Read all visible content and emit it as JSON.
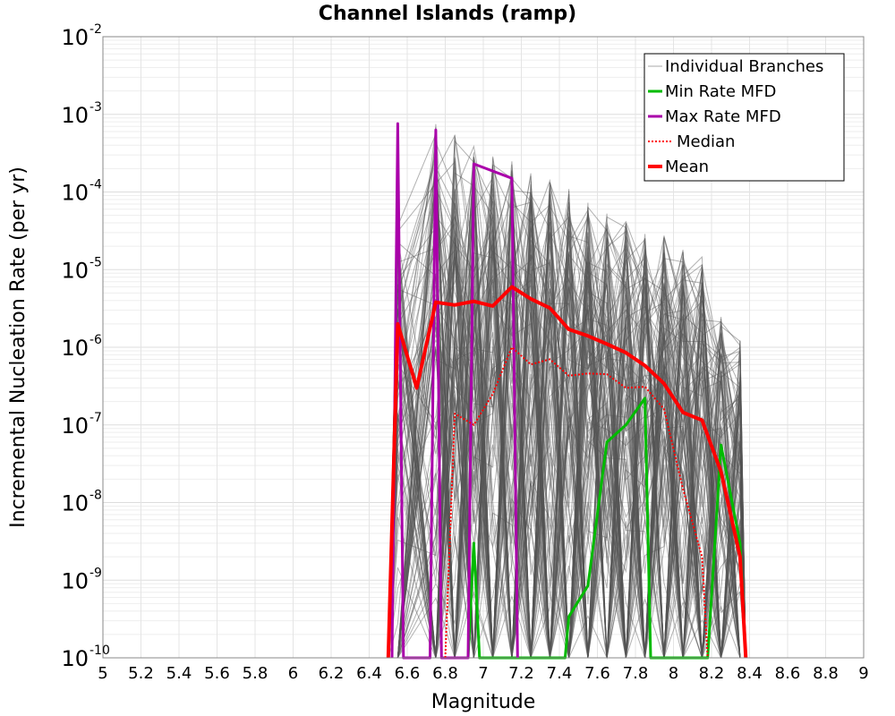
{
  "chart_data": {
    "type": "line",
    "title": "Channel Islands (ramp)",
    "xlabel": "Magnitude",
    "ylabel": "Incremental Nucleation Rate (per yr)",
    "xlim": [
      5,
      9
    ],
    "ylim": [
      1e-10,
      0.01
    ],
    "yscale": "log",
    "x_ticks": [
      "5",
      "5.2",
      "5.4",
      "5.6",
      "5.8",
      "6",
      "6.2",
      "6.4",
      "6.6",
      "6.8",
      "7",
      "7.2",
      "7.4",
      "7.6",
      "7.8",
      "8",
      "8.2",
      "8.4",
      "8.6",
      "8.8",
      "9"
    ],
    "y_ticks": [
      {
        "base": "10",
        "exp": "-10",
        "value": 1e-10
      },
      {
        "base": "10",
        "exp": "-9",
        "value": 1e-09
      },
      {
        "base": "10",
        "exp": "-8",
        "value": 1e-08
      },
      {
        "base": "10",
        "exp": "-7",
        "value": 1e-07
      },
      {
        "base": "10",
        "exp": "-6",
        "value": 1e-06
      },
      {
        "base": "10",
        "exp": "-5",
        "value": 1e-05
      },
      {
        "base": "10",
        "exp": "-4",
        "value": 0.0001
      },
      {
        "base": "10",
        "exp": "-3",
        "value": 0.001
      },
      {
        "base": "10",
        "exp": "-2",
        "value": 0.01
      }
    ],
    "legend": {
      "position": "top-right",
      "entries": [
        {
          "label": "Individual Branches",
          "color": "#aaaaaa",
          "style": "thin"
        },
        {
          "label": "Min Rate MFD",
          "color": "#00bb00",
          "style": "solid"
        },
        {
          "label": "Max Rate MFD",
          "color": "#aa00aa",
          "style": "solid"
        },
        {
          "label": "Median",
          "color": "#ff0000",
          "style": "dotted"
        },
        {
          "label": "Mean",
          "color": "#ff0000",
          "style": "thick"
        }
      ]
    },
    "branch_color": "#555555",
    "branch_mags": [
      6.55,
      6.75,
      6.85,
      6.95,
      7.05,
      7.15,
      7.25,
      7.35,
      7.45,
      7.55,
      7.65,
      7.75,
      7.85,
      7.95,
      8.05,
      8.15,
      8.25,
      8.35
    ],
    "series": [
      {
        "name": "Mean",
        "color": "#ff0000",
        "style": "thick",
        "x": [
          6.5,
          6.55,
          6.65,
          6.75,
          6.85,
          6.95,
          7.05,
          7.15,
          7.25,
          7.35,
          7.45,
          7.55,
          7.65,
          7.75,
          7.85,
          7.95,
          8.05,
          8.15,
          8.25,
          8.35,
          8.38
        ],
        "y": [
          1e-10,
          2e-06,
          3e-07,
          3.8e-06,
          3.5e-06,
          3.9e-06,
          3.4e-06,
          6e-06,
          4.2e-06,
          3.2e-06,
          1.7e-06,
          1.4e-06,
          1.1e-06,
          8.5e-07,
          5.8e-07,
          3.4e-07,
          1.45e-07,
          1.15e-07,
          2.5e-08,
          2e-09,
          1e-10
        ]
      },
      {
        "name": "Median",
        "color": "#ff0000",
        "style": "dotted",
        "x": [
          6.8,
          6.85,
          6.95,
          7.05,
          7.15,
          7.25,
          7.35,
          7.45,
          7.55,
          7.65,
          7.75,
          7.85,
          7.95,
          8.05,
          8.15,
          8.18
        ],
        "y": [
          1e-10,
          1.4e-07,
          1e-07,
          2.5e-07,
          1e-06,
          6e-07,
          7e-07,
          4.3e-07,
          4.6e-07,
          4.5e-07,
          3e-07,
          3.1e-07,
          1.6e-07,
          1.5e-08,
          2e-09,
          1e-10
        ]
      },
      {
        "name": "Max Rate MFD",
        "color": "#aa00aa",
        "style": "solid",
        "x": [
          6.52,
          6.55,
          6.58,
          6.72,
          6.75,
          6.78,
          6.92,
          6.95,
          7.15,
          7.18
        ],
        "y": [
          1e-10,
          0.00076,
          1e-10,
          1e-10,
          0.00063,
          1e-10,
          1e-10,
          0.00023,
          0.00015,
          1e-10
        ]
      },
      {
        "name": "Min Rate MFD",
        "color": "#00bb00",
        "style": "solid",
        "x": [
          6.92,
          6.95,
          6.98,
          7.43,
          7.45,
          7.55,
          7.65,
          7.75,
          7.85,
          7.88,
          8.18,
          8.25,
          8.35,
          8.38
        ],
        "y": [
          1e-10,
          3e-09,
          1e-10,
          1e-10,
          3.4e-10,
          8.5e-10,
          6e-08,
          1e-07,
          2.2e-07,
          1e-10,
          1e-10,
          5.5e-08,
          3e-09,
          1e-10
        ]
      }
    ]
  }
}
